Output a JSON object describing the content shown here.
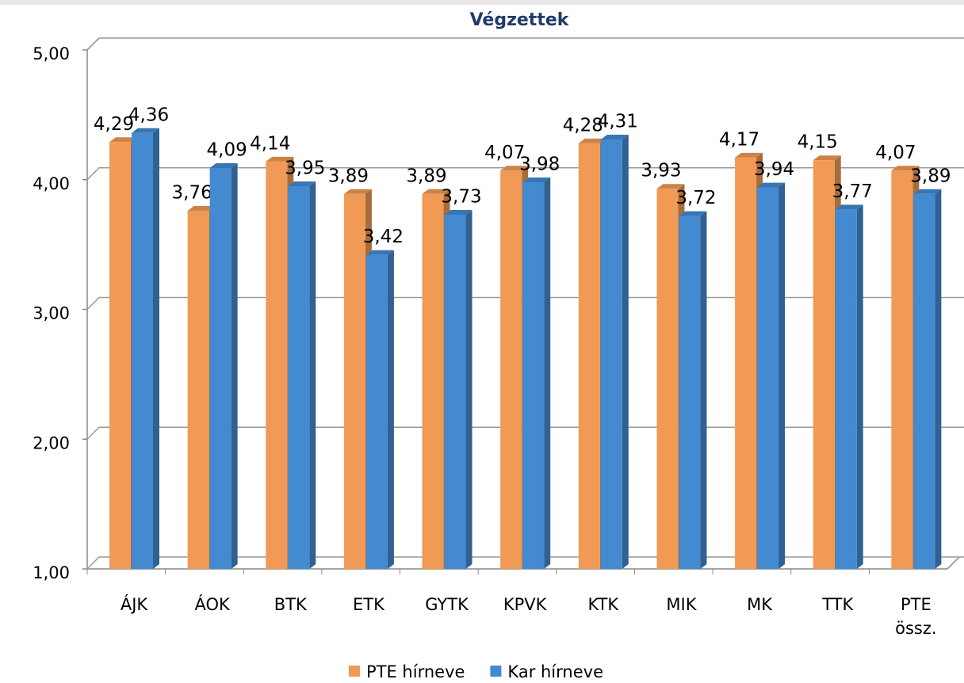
{
  "chart_data": {
    "type": "bar3d",
    "title": "Végzettek",
    "categories": [
      "ÁJK",
      "ÁOK",
      "BTK",
      "ETK",
      "GYTK",
      "KPVK",
      "KTK",
      "MIK",
      "MK",
      "TTK",
      "PTE össz."
    ],
    "series": [
      {
        "name": "PTE hírneve",
        "color": "#f09a55",
        "values": [
          4.29,
          3.76,
          4.14,
          3.89,
          3.89,
          4.07,
          4.28,
          3.93,
          4.17,
          4.15,
          4.07
        ],
        "value_labels": [
          "4,29",
          "3,76",
          "4,14",
          "3,89",
          "3,89",
          "4,07",
          "4,28",
          "3,93",
          "4,17",
          "4,15",
          "4,07"
        ]
      },
      {
        "name": "Kar hírneve",
        "color": "#438ad0",
        "values": [
          4.36,
          4.09,
          3.95,
          3.42,
          3.73,
          3.98,
          4.31,
          3.72,
          3.94,
          3.77,
          3.89
        ],
        "value_labels": [
          "4,36",
          "4,09",
          "3,95",
          "3,42",
          "3,73",
          "3,98",
          "4,31",
          "3,72",
          "3,94",
          "3,77",
          "3,89"
        ]
      }
    ],
    "ylim": [
      1,
      5
    ],
    "yticks": [
      {
        "value": 1,
        "label": "1,00"
      },
      {
        "value": 2,
        "label": "2,00"
      },
      {
        "value": 3,
        "label": "3,00"
      },
      {
        "value": 4,
        "label": "4,00"
      },
      {
        "value": 5,
        "label": "5,00"
      }
    ],
    "grid": true,
    "legend": "bottom"
  }
}
